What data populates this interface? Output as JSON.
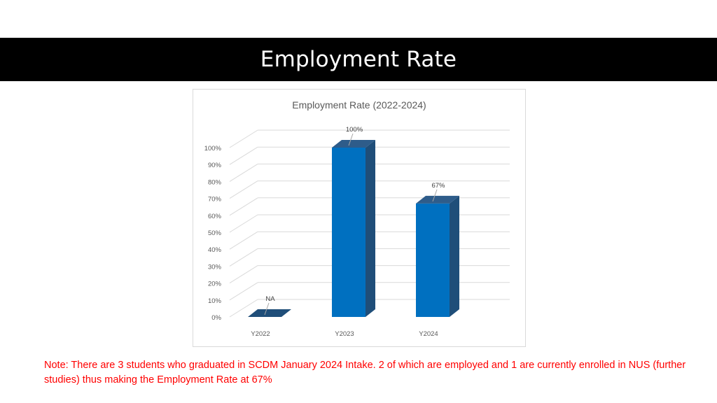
{
  "slide": {
    "title": "Employment Rate",
    "note": "Note: There are 3 students who graduated in SCDM January 2024 Intake. 2 of which are employed and 1 are currently enrolled in NUS (further studies) thus making the Employment Rate at 67%"
  },
  "colors": {
    "bar_front": "#0070c0",
    "bar_side": "#1f4e79",
    "bar_top": "#2e5c8a",
    "note": "#ff0000",
    "title_band": "#000000"
  },
  "chart_data": {
    "type": "bar",
    "title": "Employment Rate (2022-2024)",
    "xlabel": "",
    "ylabel": "",
    "categories": [
      "Y2022",
      "Y2023",
      "Y2024"
    ],
    "values": [
      0,
      100,
      67
    ],
    "data_labels": [
      "NA",
      "100%",
      "67%"
    ],
    "ylim": [
      0,
      100
    ],
    "y_ticks": [
      "0%",
      "10%",
      "20%",
      "30%",
      "40%",
      "50%",
      "60%",
      "70%",
      "80%",
      "90%",
      "100%"
    ],
    "grid": true,
    "legend": "none",
    "style": "3d-column"
  }
}
